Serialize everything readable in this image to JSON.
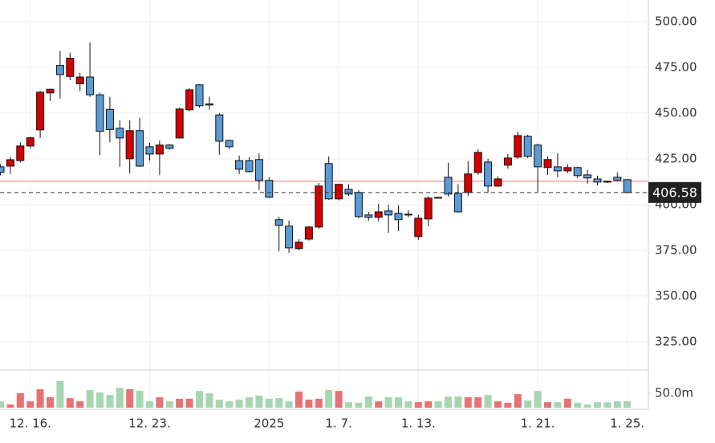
{
  "chart_data": {
    "type": "candlestick",
    "categories": [
      null,
      null,
      null,
      "12. 16.",
      null,
      null,
      null,
      null,
      null,
      null,
      null,
      null,
      null,
      null,
      null,
      "12. 23.",
      null,
      null,
      null,
      null,
      null,
      null,
      null,
      null,
      null,
      null,
      null,
      "2025",
      null,
      null,
      null,
      null,
      null,
      null,
      "1. 7.",
      null,
      null,
      null,
      null,
      null,
      null,
      null,
      "1. 13.",
      null,
      null,
      null,
      null,
      null,
      null,
      null,
      null,
      null,
      null,
      null,
      "1. 21.",
      null,
      null,
      null,
      null,
      null,
      null,
      null,
      null,
      "1. 25."
    ],
    "open": [
      420.6,
      421,
      424,
      432,
      440.8,
      461,
      476,
      470,
      466,
      469.7,
      460,
      452,
      441.7,
      425,
      440.4,
      431.6,
      427.6,
      432.5,
      436.4,
      451.8,
      465.4,
      455,
      449,
      435,
      424,
      424,
      424.6,
      413.2,
      391.7,
      388.2,
      375.9,
      381.1,
      387.7,
      422.4,
      403.1,
      408.3,
      406.6,
      394.3,
      393,
      396.5,
      395.2,
      394.7,
      382.5,
      392.1,
      403.9,
      414.9,
      406.1,
      406.6,
      417.5,
      423.2,
      410.1,
      421.5,
      425.9,
      437.3,
      432.5,
      420.2,
      420.6,
      418.4,
      420.2,
      416.2,
      414,
      412.7,
      414.9,
      413.6
    ],
    "high": [
      422,
      426,
      434,
      437,
      462,
      463.2,
      484,
      483,
      472,
      488.6,
      461,
      458.8,
      446,
      446,
      447.4,
      433.8,
      435,
      433,
      453,
      463.6,
      465.8,
      459,
      450,
      435.5,
      426.8,
      425.9,
      428,
      415,
      393.4,
      391.2,
      381.1,
      388.2,
      411.8,
      426.3,
      411.4,
      411,
      407.9,
      396,
      400.4,
      400,
      399.6,
      396.9,
      394.3,
      404.4,
      404,
      422.8,
      411,
      423.7,
      430.3,
      425,
      415.4,
      427.6,
      439.9,
      438.2,
      433.3,
      426.3,
      428,
      422,
      420.6,
      418.9,
      415.8,
      413.1,
      417.5,
      414
    ],
    "low": [
      416,
      416.7,
      423,
      430.7,
      436.4,
      456.6,
      458,
      468,
      462,
      458.8,
      427,
      434,
      420.6,
      417.1,
      420.6,
      424,
      416.2,
      430,
      436,
      450.9,
      453,
      451.8,
      427.2,
      430.3,
      416.7,
      417.5,
      407.9,
      403.5,
      374.6,
      373.7,
      375,
      380.3,
      386.8,
      402.6,
      402.2,
      404.8,
      392.5,
      391.2,
      390.8,
      384.6,
      385.5,
      393,
      380.7,
      388.2,
      403.5,
      404.4,
      395.6,
      404.8,
      416.2,
      406.6,
      409.6,
      419.7,
      425,
      425.4,
      407,
      416.2,
      414.9,
      417.1,
      414.5,
      411.4,
      410.5,
      411.8,
      412.7,
      406.2
    ],
    "close": [
      417.5,
      424.5,
      432,
      436.5,
      461.4,
      463,
      471,
      480,
      469.7,
      460,
      440,
      441,
      436.4,
      440.4,
      421,
      427.6,
      432.5,
      430.7,
      452.2,
      462.7,
      454,
      454.4,
      434.6,
      431.6,
      419.3,
      418,
      413.2,
      404,
      388.6,
      376.3,
      379.4,
      387.7,
      410.1,
      403.1,
      411,
      405.7,
      393.4,
      393,
      396,
      394.3,
      391.7,
      394.3,
      392.5,
      403.5,
      403.5,
      405.7,
      396,
      416.7,
      428.5,
      410.1,
      414,
      425.4,
      437.7,
      426.3,
      420.6,
      424.6,
      418.4,
      420.2,
      415.8,
      414.5,
      412.3,
      412.3,
      413.2,
      406.58
    ],
    "volume": [
      22,
      11,
      50,
      22,
      64,
      36,
      92,
      33,
      22,
      61,
      53,
      44,
      69,
      64,
      58,
      22,
      36,
      22,
      31,
      31,
      58,
      50,
      28,
      22,
      28,
      36,
      42,
      31,
      33,
      22,
      56,
      28,
      31,
      61,
      58,
      19,
      17,
      39,
      22,
      36,
      36,
      22,
      19,
      22,
      22,
      39,
      39,
      36,
      36,
      44,
      22,
      17,
      47,
      25,
      58,
      19,
      19,
      31,
      17,
      11,
      19,
      19,
      22,
      22
    ],
    "ylim": [
      310,
      511.8
    ],
    "yticks": [
      {
        "value": 325,
        "label": "325.00"
      },
      {
        "value": 350,
        "label": "350.00"
      },
      {
        "value": 375,
        "label": "375.00"
      },
      {
        "value": 400,
        "label": "400.00"
      },
      {
        "value": 425,
        "label": "425.00"
      },
      {
        "value": 450,
        "label": "450.00"
      },
      {
        "value": 475,
        "label": "475.00"
      },
      {
        "value": 500,
        "label": "500.00"
      }
    ],
    "volume_ylim": [
      0,
      125
    ],
    "volume_yticks": [
      {
        "value": 50,
        "label": "50.0m"
      }
    ],
    "reference_line": 412.7,
    "up_color": "#d40000",
    "down_color": "#5b9bd5",
    "volume_up_color": "#e57373",
    "volume_down_color": "#a5d6b0",
    "grid": true
  }
}
